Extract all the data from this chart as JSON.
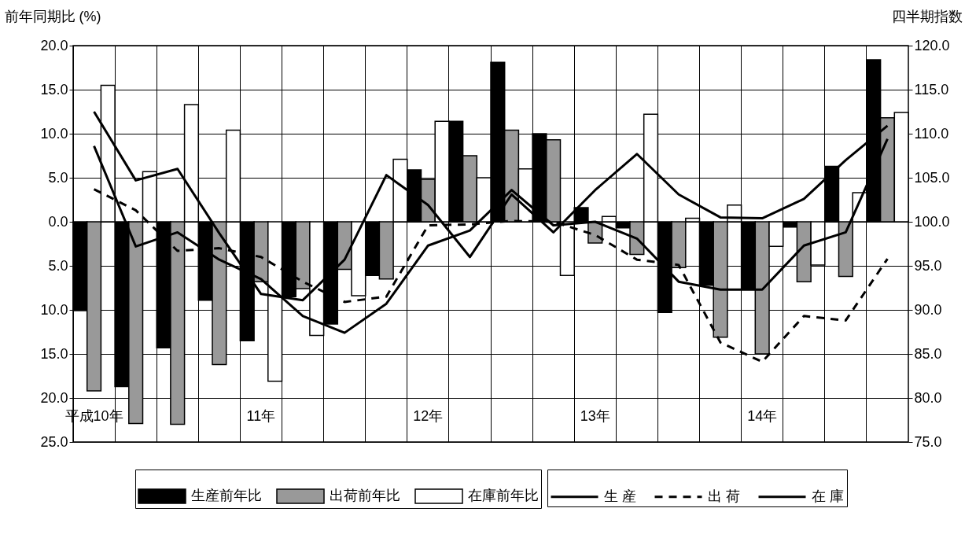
{
  "chart_data": {
    "type": "bar",
    "ylabel": "前年同期比 (%)",
    "y2label": "四半期指数",
    "categories": [
      "平成10年",
      null,
      null,
      null,
      "11年",
      null,
      null,
      null,
      "12年",
      null,
      null,
      null,
      "13年",
      null,
      null,
      null,
      "14年",
      null,
      null,
      null
    ],
    "series": [
      {
        "name": "生産前年比",
        "color": "#000000",
        "values": [
          -10.1,
          -18.7,
          -14.3,
          -8.9,
          -13.5,
          -8.5,
          -11.6,
          -6.1,
          5.9,
          11.4,
          18.1,
          10.0,
          1.6,
          -0.7,
          -10.3,
          -7.2,
          -7.7,
          -0.6,
          6.3,
          18.4
        ]
      },
      {
        "name": "出荷前年比",
        "color": "#999999",
        "values": [
          -19.2,
          -22.9,
          -23.0,
          -16.2,
          -6.8,
          -7.6,
          -5.4,
          -6.5,
          4.8,
          7.5,
          10.4,
          9.3,
          -2.4,
          -3.7,
          -5.2,
          -13.1,
          -15.0,
          -6.8,
          -6.2,
          11.8
        ]
      },
      {
        "name": "在庫前年比",
        "color": "#ffffff",
        "values": [
          15.5,
          5.7,
          13.3,
          10.4,
          -18.1,
          -12.9,
          -8.4,
          7.1,
          11.4,
          5.0,
          6.0,
          -6.1,
          0.6,
          12.2,
          0.4,
          1.9,
          -2.8,
          -4.9,
          3.3,
          12.4
        ]
      },
      {
        "name": "生 産",
        "type": "line",
        "axis": "y2",
        "color": "#000000",
        "line_style": "solid",
        "values": [
          108.6,
          97.2,
          98.8,
          95.7,
          93.5,
          89.3,
          87.4,
          90.7,
          97.3,
          99.0,
          103.6,
          99.6,
          100.0,
          98.1,
          93.2,
          92.3,
          92.3,
          97.3,
          98.8,
          109.4
        ]
      },
      {
        "name": "出 荷",
        "type": "line",
        "axis": "y2",
        "color": "#000000",
        "line_style": "dashed",
        "values": [
          103.7,
          101.3,
          96.7,
          97.0,
          96.0,
          93.2,
          90.9,
          91.5,
          99.6,
          99.7,
          100.1,
          100.0,
          98.5,
          95.7,
          95.1,
          86.3,
          84.1,
          89.3,
          88.8,
          95.8
        ]
      },
      {
        "name": "在 庫",
        "type": "line",
        "axis": "y2",
        "color": "#000000",
        "line_style": "solid",
        "values": [
          112.5,
          104.7,
          106.0,
          98.7,
          91.8,
          91.1,
          95.7,
          105.3,
          101.9,
          96.0,
          103.1,
          98.8,
          103.6,
          107.7,
          103.1,
          100.5,
          100.4,
          102.6,
          107.0,
          110.9
        ]
      }
    ],
    "ylim": [
      -25,
      20
    ],
    "yticks": [
      {
        "value": 20,
        "label": "20.0"
      },
      {
        "value": 15,
        "label": "15.0"
      },
      {
        "value": 10,
        "label": "10.0"
      },
      {
        "value": 5,
        "label": "5.0"
      },
      {
        "value": 0,
        "label": "0.0"
      },
      {
        "value": -5,
        "label": "5.0"
      },
      {
        "value": -10,
        "label": "10.0"
      },
      {
        "value": -15,
        "label": "15.0"
      },
      {
        "value": -20,
        "label": "20.0"
      },
      {
        "value": -25,
        "label": "25.0"
      }
    ],
    "y2lim": [
      75,
      120
    ],
    "y2ticks": [
      {
        "value": 120,
        "label": "120.0"
      },
      {
        "value": 115,
        "label": "115.0"
      },
      {
        "value": 110,
        "label": "110.0"
      },
      {
        "value": 105,
        "label": "105.0"
      },
      {
        "value": 100,
        "label": "100.0"
      },
      {
        "value": 95,
        "label": "95.0"
      },
      {
        "value": 90,
        "label": "90.0"
      },
      {
        "value": 85,
        "label": "85.0"
      },
      {
        "value": 80,
        "label": "80.0"
      },
      {
        "value": 75,
        "label": "75.0"
      }
    ],
    "grid": true,
    "legend": "bottom"
  }
}
